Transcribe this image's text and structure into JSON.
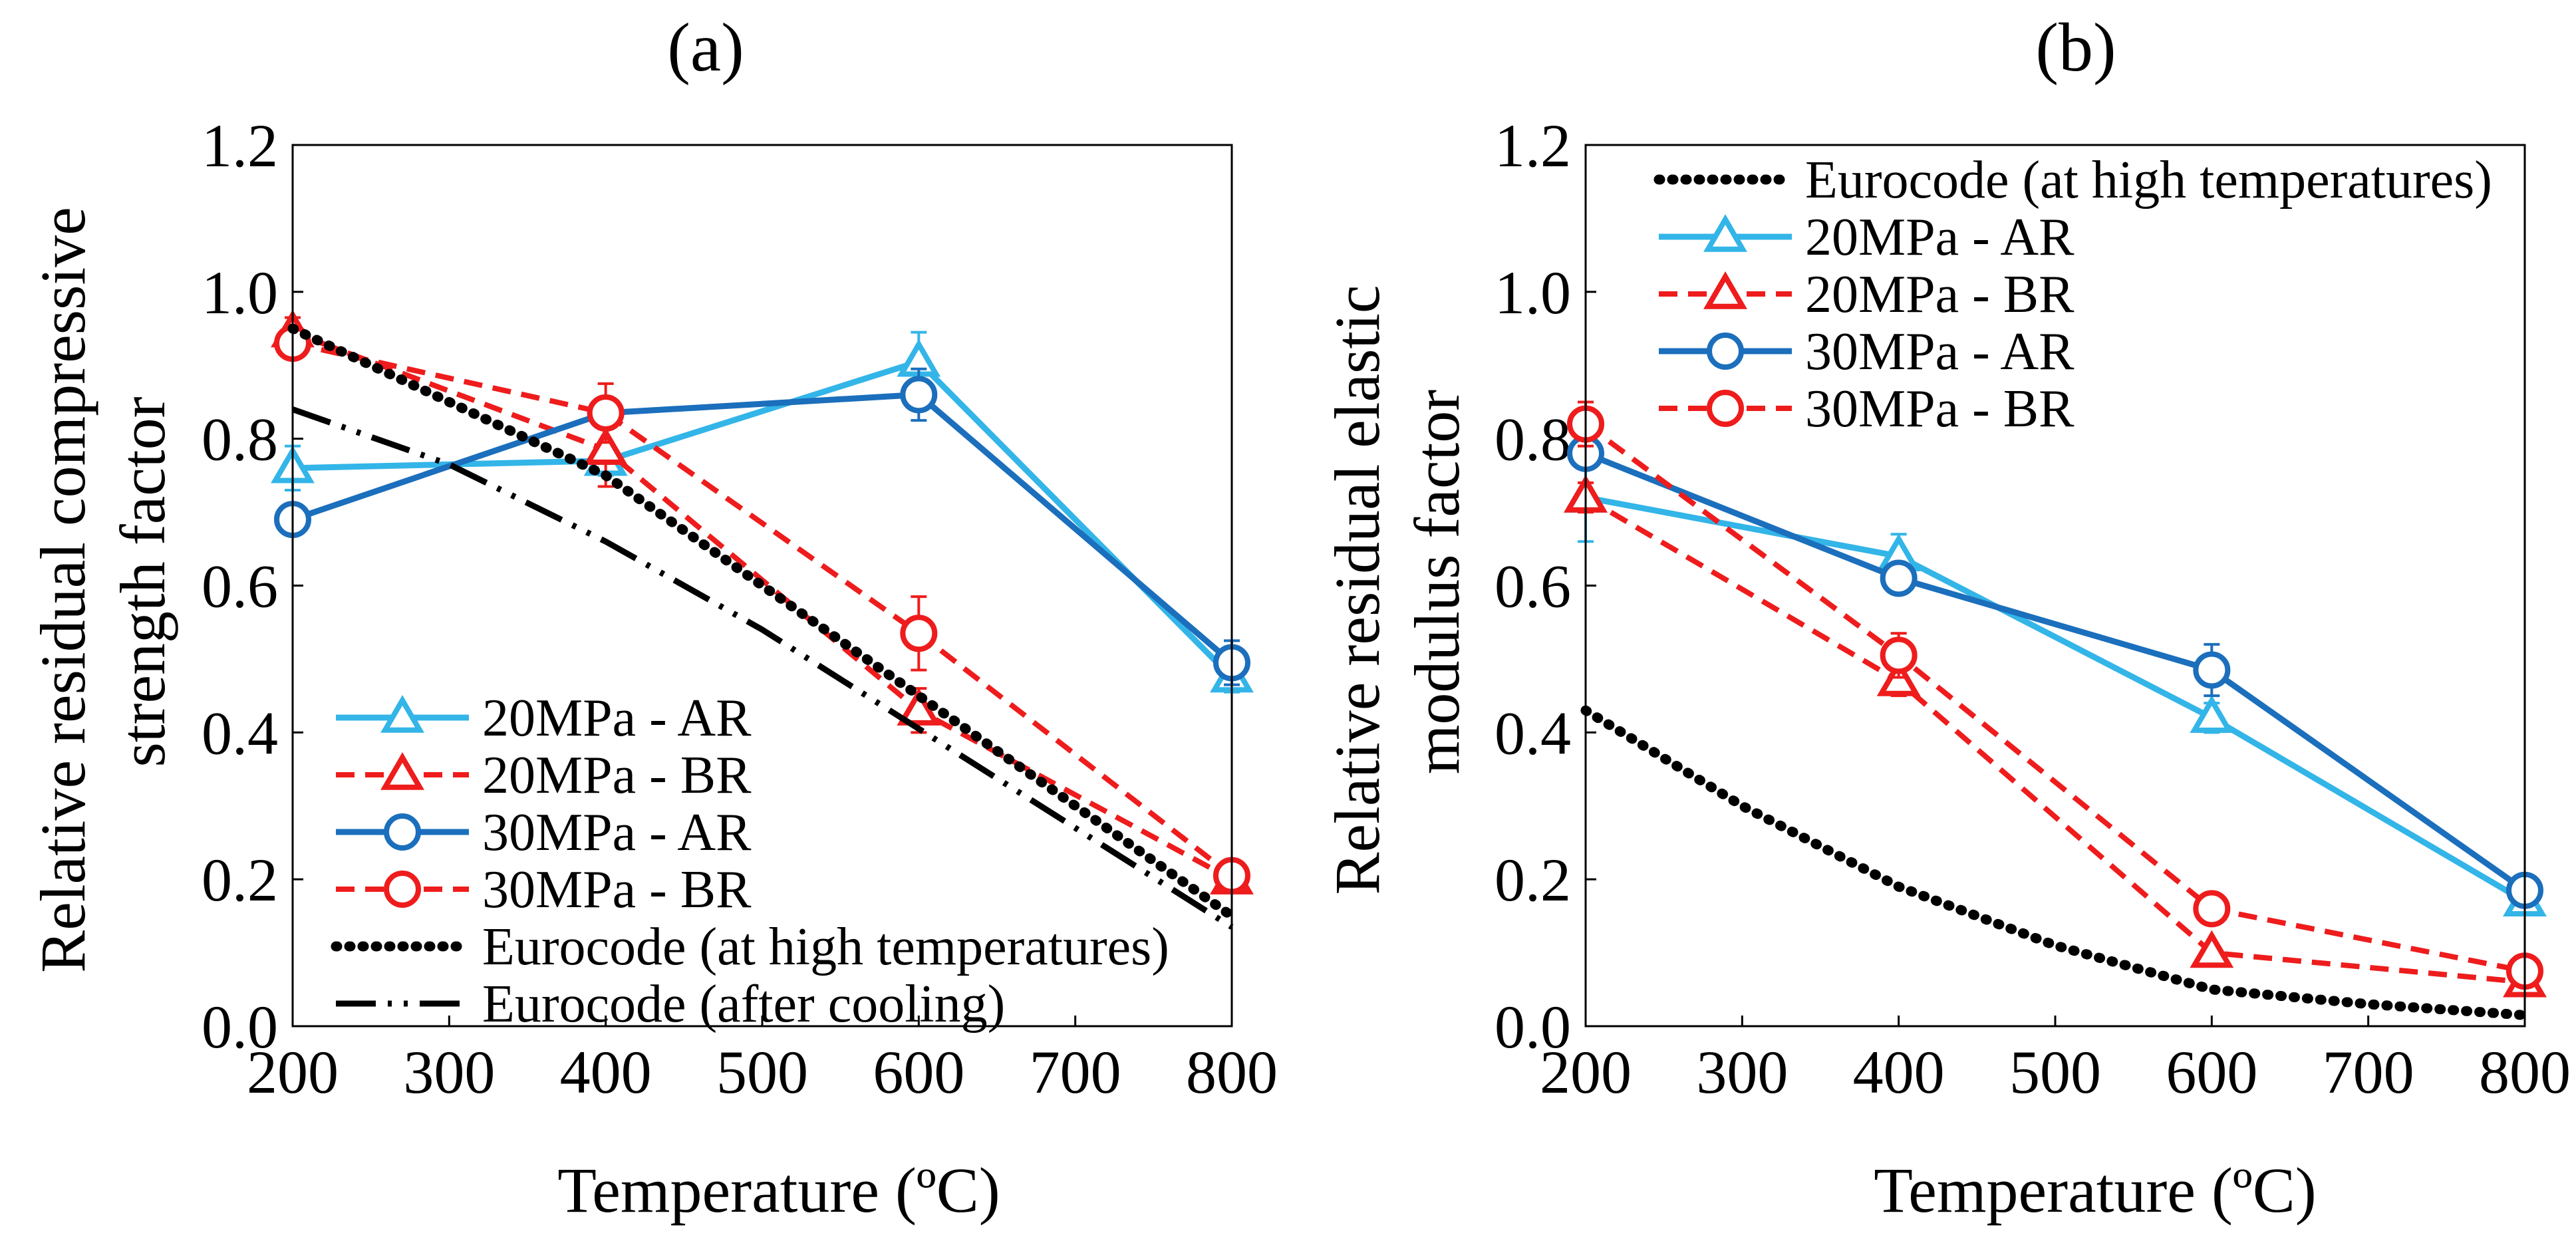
{
  "figure": {
    "colors": {
      "ar_20": "#33B5E8",
      "br": "#EE1C1C",
      "ar_30": "#1B6FBC",
      "eurocode": "#000000"
    }
  },
  "chart_data": [
    {
      "type": "line",
      "panel_label": "(a)",
      "xlabel": "Temperature (ºC)",
      "ylabel_lines": [
        "Relative residual compressive",
        "strength factor"
      ],
      "xlim": [
        200,
        800
      ],
      "ylim": [
        0.0,
        1.2
      ],
      "x_ticks": [
        200,
        300,
        400,
        500,
        600,
        700,
        800
      ],
      "y_ticks": [
        "0.0",
        "0.2",
        "0.4",
        "0.6",
        "0.8",
        "1.0",
        "1.2"
      ],
      "grid": false,
      "legend_position": "bottom-left",
      "series": [
        {
          "name": "20MPa - AR",
          "color_key": "ar_20",
          "marker": "triangle",
          "dash": "solid",
          "x": [
            200,
            400,
            600,
            800
          ],
          "y": [
            0.76,
            0.77,
            0.905,
            0.475
          ],
          "err": [
            0.03,
            0.02,
            0.04,
            0.02
          ]
        },
        {
          "name": "20MPa - BR",
          "color_key": "br",
          "marker": "triangle",
          "dash": "dashed",
          "x": [
            200,
            400,
            600,
            800
          ],
          "y": [
            0.945,
            0.785,
            0.43,
            0.2
          ],
          "err": [
            0.02,
            0.05,
            0.03,
            0.01
          ]
        },
        {
          "name": "30MPa - AR",
          "color_key": "ar_30",
          "marker": "circle",
          "dash": "solid",
          "x": [
            200,
            400,
            600,
            800
          ],
          "y": [
            0.69,
            0.835,
            0.86,
            0.495
          ],
          "err": [
            0.0,
            0.0,
            0.035,
            0.03
          ]
        },
        {
          "name": "30MPa - BR",
          "color_key": "br",
          "marker": "circle",
          "dash": "dashed",
          "x": [
            200,
            400,
            600,
            800
          ],
          "y": [
            0.93,
            0.835,
            0.535,
            0.205
          ],
          "err": [
            0.0,
            0.04,
            0.05,
            0.01
          ]
        },
        {
          "name": "Eurocode (at high temperatures)",
          "color_key": "eurocode",
          "marker": "none",
          "dash": "dotted",
          "x": [
            200,
            300,
            400,
            500,
            600,
            700,
            800
          ],
          "y": [
            0.95,
            0.85,
            0.75,
            0.6,
            0.45,
            0.3,
            0.15
          ]
        },
        {
          "name": "Eurocode (after cooling)",
          "color_key": "eurocode",
          "marker": "none",
          "dash": "dashdotdot",
          "x": [
            200,
            300,
            400,
            500,
            600,
            700,
            800
          ],
          "y": [
            0.84,
            0.765,
            0.66,
            0.54,
            0.405,
            0.27,
            0.135
          ]
        }
      ]
    },
    {
      "type": "line",
      "panel_label": "(b)",
      "xlabel": "Temperature (ºC)",
      "ylabel_lines": [
        "Relative residual elastic",
        "modulus factor"
      ],
      "xlim": [
        200,
        800
      ],
      "ylim": [
        0.0,
        1.2
      ],
      "x_ticks": [
        200,
        300,
        400,
        500,
        600,
        700,
        800
      ],
      "y_ticks": [
        "0.0",
        "0.2",
        "0.4",
        "0.6",
        "0.8",
        "1.0",
        "1.2"
      ],
      "grid": false,
      "legend_position": "top-right",
      "series": [
        {
          "name": "Eurocode (at high temperatures)",
          "color_key": "eurocode",
          "marker": "none",
          "dash": "dotted",
          "x": [
            200,
            300,
            400,
            500,
            600,
            700,
            800
          ],
          "y": [
            0.43,
            0.3,
            0.19,
            0.11,
            0.05,
            0.03,
            0.015
          ]
        },
        {
          "name": "20MPa - AR",
          "color_key": "ar_20",
          "marker": "triangle",
          "dash": "solid",
          "x": [
            200,
            400,
            600,
            800
          ],
          "y": [
            0.72,
            0.64,
            0.42,
            0.17
          ],
          "err": [
            0.06,
            0.03,
            0.02,
            0.01
          ]
        },
        {
          "name": "20MPa - BR",
          "color_key": "br",
          "marker": "triangle",
          "dash": "dashed",
          "x": [
            200,
            400,
            600,
            800
          ],
          "y": [
            0.72,
            0.47,
            0.1,
            0.06
          ],
          "err": [
            0.02,
            0.02,
            0.01,
            0.01
          ]
        },
        {
          "name": "30MPa - AR",
          "color_key": "ar_30",
          "marker": "circle",
          "dash": "solid",
          "x": [
            200,
            400,
            600,
            800
          ],
          "y": [
            0.78,
            0.61,
            0.485,
            0.185
          ],
          "err": [
            0.02,
            0.02,
            0.035,
            0.01
          ]
        },
        {
          "name": "30MPa - BR",
          "color_key": "br",
          "marker": "circle",
          "dash": "dashed",
          "x": [
            200,
            400,
            600,
            800
          ],
          "y": [
            0.82,
            0.505,
            0.16,
            0.075
          ],
          "err": [
            0.03,
            0.03,
            0.02,
            0.01
          ]
        }
      ]
    }
  ]
}
